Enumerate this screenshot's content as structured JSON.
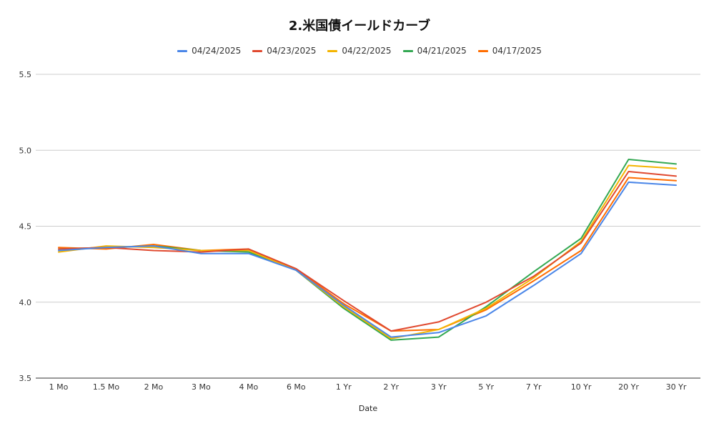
{
  "chart_data": {
    "type": "line",
    "title": "2.米国債イールドカーブ",
    "xlabel": "Date",
    "ylabel": "",
    "categories": [
      "1 Mo",
      "1.5 Mo",
      "2 Mo",
      "3 Mo",
      "4 Mo",
      "6 Mo",
      "1 Yr",
      "2 Yr",
      "3 Yr",
      "5 Yr",
      "7 Yr",
      "10 Yr",
      "20 Yr",
      "30 Yr"
    ],
    "yticks": [
      "3.5",
      "4.0",
      "4.5",
      "5.0",
      "5.5"
    ],
    "ylim": [
      3.5,
      5.5
    ],
    "grid": true,
    "legend_position": "top",
    "series": [
      {
        "name": "04/24/2025",
        "color": "#4a86e8",
        "values": [
          4.34,
          4.36,
          4.37,
          4.32,
          4.32,
          4.21,
          3.98,
          3.77,
          3.8,
          3.91,
          4.11,
          4.32,
          4.79,
          4.77
        ]
      },
      {
        "name": "04/23/2025",
        "color": "#e0492f",
        "values": [
          4.35,
          4.36,
          4.34,
          4.33,
          4.35,
          4.22,
          4.01,
          3.81,
          3.87,
          4.0,
          4.17,
          4.39,
          4.86,
          4.83
        ]
      },
      {
        "name": "04/22/2025",
        "color": "#f4b400",
        "values": [
          4.33,
          4.37,
          4.36,
          4.34,
          4.34,
          4.21,
          3.97,
          3.76,
          3.82,
          3.96,
          4.16,
          4.4,
          4.9,
          4.88
        ]
      },
      {
        "name": "04/21/2025",
        "color": "#34a853",
        "values": [
          4.35,
          4.36,
          4.37,
          4.34,
          4.33,
          4.21,
          3.96,
          3.75,
          3.77,
          3.97,
          4.2,
          4.42,
          4.94,
          4.91
        ]
      },
      {
        "name": "04/17/2025",
        "color": "#ff6d01",
        "values": [
          4.36,
          4.35,
          4.38,
          4.34,
          4.35,
          4.22,
          3.99,
          3.81,
          3.82,
          3.95,
          4.14,
          4.34,
          4.82,
          4.8
        ]
      }
    ]
  }
}
